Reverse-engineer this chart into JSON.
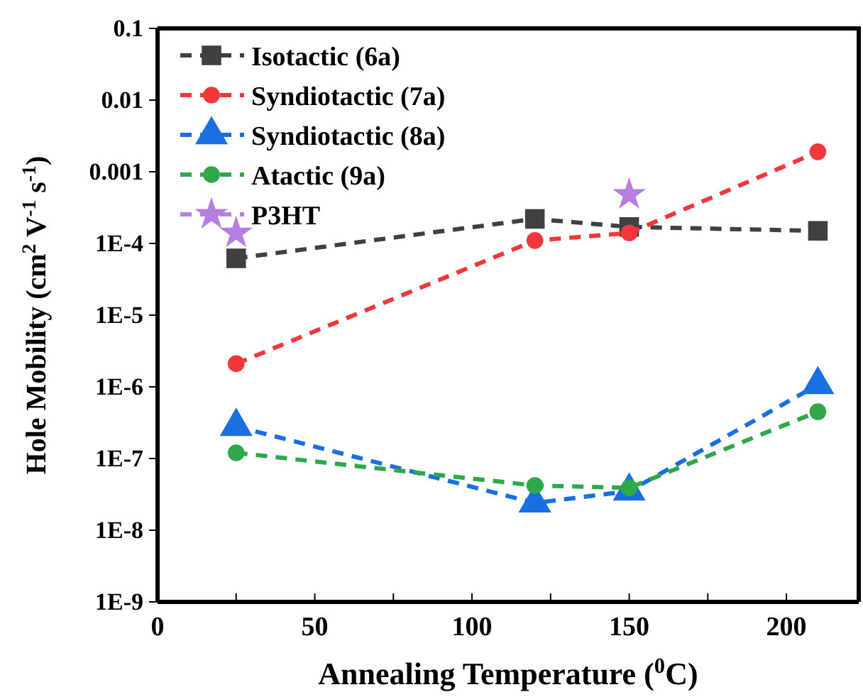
{
  "chart_data": {
    "type": "line",
    "xlabel": "Annealing Temperature ($^{0}$C)",
    "ylabel": "Hole Mobility (cm$^{2}$ V$^{-1}$ s$^{-1}$)",
    "log": "y",
    "xlim": [
      0,
      223
    ],
    "ylim": [
      1e-09,
      0.1
    ],
    "xticks": [
      0,
      {
        "value": 25,
        "label": null
      },
      50,
      {
        "value": 75,
        "label": null
      },
      100,
      {
        "value": 125,
        "label": null
      },
      150,
      {
        "value": 175,
        "label": null
      },
      200
    ],
    "yticks": [
      {
        "value": 1e-09,
        "label": "1E-9"
      },
      {
        "value": 1e-08,
        "label": "1E-8"
      },
      {
        "value": 1e-07,
        "label": "1E-7"
      },
      {
        "value": 1e-06,
        "label": "1E-6"
      },
      {
        "value": 1e-05,
        "label": "1E-5"
      },
      {
        "value": 0.0001,
        "label": "1E-4"
      },
      0.001,
      0.01,
      0.1
    ],
    "grid": false,
    "legend": "top left",
    "line_style": "dashed",
    "series": [
      {
        "name": "Isotactic (6a)",
        "color": "#404040",
        "marker": "square",
        "x": [
          25,
          120,
          150,
          210
        ],
        "values": [
          6.2e-05,
          0.00022,
          0.00017,
          0.00015
        ]
      },
      {
        "name": "Syndiotactic (7a)",
        "color": "#f0383a",
        "marker": "circle",
        "x": [
          25,
          120,
          150,
          210
        ],
        "values": [
          2.1e-06,
          0.00011,
          0.00014,
          0.0019
        ]
      },
      {
        "name": "Syndiotactic (8a)",
        "color": "#1a6fe0",
        "marker": "triangle",
        "x": [
          25,
          120,
          150,
          210
        ],
        "values": [
          2.8e-07,
          2.4e-08,
          3.5e-08,
          1.07e-06
        ]
      },
      {
        "name": "Atactic (9a)",
        "color": "#2ea84a",
        "marker": "circle",
        "x": [
          25,
          120,
          150,
          210
        ],
        "values": [
          1.2e-07,
          4.2e-08,
          3.9e-08,
          4.5e-07
        ]
      },
      {
        "name": "P3HT",
        "type": "scatter",
        "color": "#b57ee0",
        "marker": "star",
        "x": [
          25,
          150
        ],
        "values": [
          0.00014,
          0.00048
        ]
      }
    ]
  }
}
